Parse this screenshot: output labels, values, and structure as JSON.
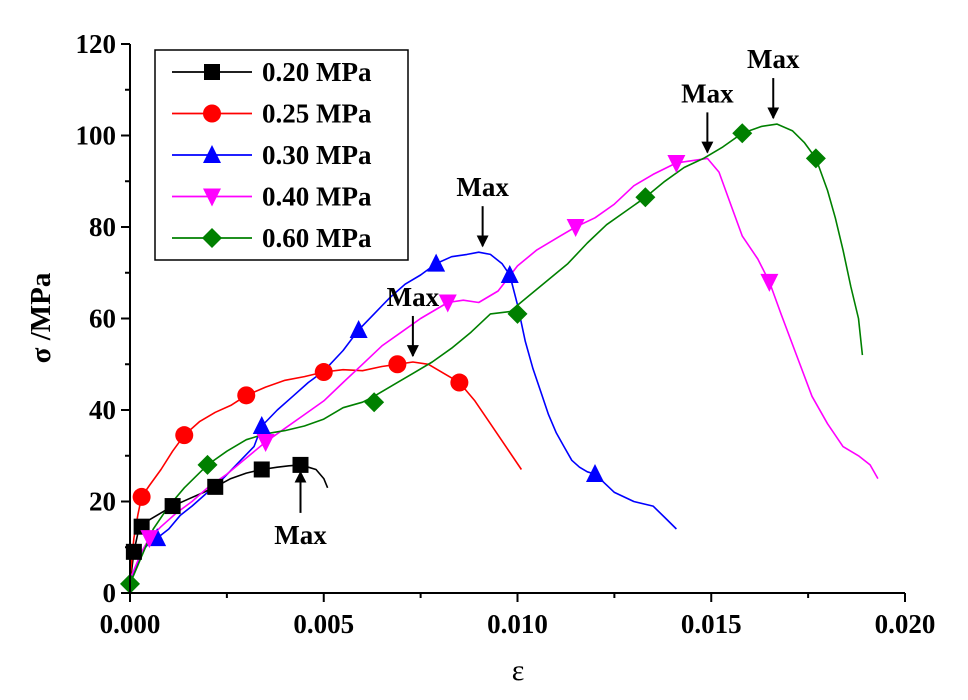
{
  "chart_data": {
    "type": "line",
    "title": "",
    "xlabel": "ε",
    "ylabel": "σ /MPa",
    "xlim": [
      0,
      0.02
    ],
    "ylim": [
      0,
      120
    ],
    "xticks": [
      0,
      0.005,
      0.01,
      0.015,
      0.02
    ],
    "xtick_labels": [
      "0.000",
      "0.005",
      "0.010",
      "0.015",
      "0.020"
    ],
    "yticks": [
      0,
      20,
      40,
      60,
      80,
      100,
      120
    ],
    "ytick_labels": [
      "0",
      "20",
      "40",
      "60",
      "80",
      "100",
      "120"
    ],
    "grid": false,
    "legend_position": "top-left",
    "series": [
      {
        "name": "0.20 MPa",
        "color": "#000000",
        "marker": "square",
        "x": [
          0,
          0.0001,
          0.0002,
          0.0003,
          0.0005,
          0.0008,
          0.0011,
          0.0015,
          0.0019,
          0.0022,
          0.0026,
          0.003,
          0.0034,
          0.0038,
          0.0041,
          0.0044,
          0.0046,
          0.0048,
          0.005,
          0.0051
        ],
        "y": [
          2,
          9,
          13,
          14.5,
          16,
          17.5,
          19,
          20.5,
          22,
          23.2,
          25,
          26.2,
          27,
          27.5,
          27.8,
          28,
          27.5,
          27,
          25,
          23
        ],
        "markers_x": [
          0.0001,
          0.0003,
          0.0011,
          0.0022,
          0.0034,
          0.0044
        ],
        "markers_y": [
          9,
          14.5,
          19,
          23.2,
          27,
          28
        ]
      },
      {
        "name": "0.25 MPa",
        "color": "#ff0000",
        "marker": "circle",
        "x": [
          0,
          0.0001,
          0.0002,
          0.0003,
          0.0005,
          0.0008,
          0.0011,
          0.0014,
          0.0018,
          0.0022,
          0.0026,
          0.003,
          0.0035,
          0.004,
          0.0045,
          0.005,
          0.0055,
          0.006,
          0.0065,
          0.0069,
          0.0073,
          0.0077,
          0.0081,
          0.0085,
          0.0089,
          0.0093,
          0.0097,
          0.0101
        ],
        "y": [
          3,
          12,
          17,
          21,
          23.5,
          27,
          31,
          34.5,
          37.5,
          39.5,
          41,
          43.2,
          45,
          46.5,
          47.3,
          48.3,
          48.8,
          48.6,
          49.5,
          50,
          50.5,
          50,
          48,
          46,
          42,
          37,
          32,
          27
        ],
        "markers_x": [
          0.0003,
          0.0014,
          0.003,
          0.005,
          0.0069,
          0.0085
        ],
        "markers_y": [
          21,
          34.5,
          43.2,
          48.3,
          50,
          46
        ]
      },
      {
        "name": "0.30 MPa",
        "color": "#0000ff",
        "marker": "triangle-up",
        "x": [
          0,
          0.0003,
          0.0005,
          0.0007,
          0.001,
          0.0013,
          0.0016,
          0.002,
          0.0024,
          0.0028,
          0.0032,
          0.0034,
          0.0038,
          0.0042,
          0.0046,
          0.005,
          0.0055,
          0.0059,
          0.0063,
          0.0067,
          0.0071,
          0.0075,
          0.0079,
          0.0083,
          0.0087,
          0.009,
          0.0093,
          0.0096,
          0.0098,
          0.01,
          0.0102,
          0.0104,
          0.0106,
          0.0108,
          0.011,
          0.0112,
          0.0114,
          0.0116,
          0.0118,
          0.012,
          0.0125,
          0.013,
          0.0135,
          0.0138,
          0.0141
        ],
        "y": [
          2,
          9,
          11,
          12,
          14,
          17,
          19,
          22,
          25,
          28.5,
          32,
          36.5,
          40,
          43,
          46,
          48.5,
          53,
          57.5,
          61,
          64.5,
          67.5,
          69.5,
          72,
          73.5,
          74,
          74.5,
          74,
          72,
          69.5,
          63,
          55,
          49,
          44,
          39,
          35,
          32,
          29,
          27.5,
          26.5,
          26,
          22,
          20,
          19,
          16.5,
          14
        ],
        "markers_x": [
          0.0007,
          0.0034,
          0.0059,
          0.0079,
          0.0098,
          0.012
        ],
        "markers_y": [
          12,
          36.5,
          57.5,
          72,
          69.5,
          26
        ]
      },
      {
        "name": "0.40 MPa",
        "color": "#ff00ff",
        "marker": "triangle-down",
        "x": [
          0,
          0.0003,
          0.0005,
          0.0008,
          0.0012,
          0.0016,
          0.002,
          0.0025,
          0.003,
          0.0035,
          0.004,
          0.0045,
          0.005,
          0.0055,
          0.006,
          0.0065,
          0.007,
          0.0075,
          0.0082,
          0.0086,
          0.009,
          0.0095,
          0.01,
          0.0105,
          0.0111,
          0.0115,
          0.012,
          0.0125,
          0.013,
          0.0135,
          0.0141,
          0.0145,
          0.0149,
          0.0152,
          0.0155,
          0.0158,
          0.0162,
          0.0165,
          0.0168,
          0.0172,
          0.0176,
          0.018,
          0.0184,
          0.0188,
          0.0191,
          0.0193
        ],
        "y": [
          3,
          9,
          12,
          14.5,
          17.5,
          20,
          23,
          26,
          29.5,
          33,
          36,
          39,
          42,
          46,
          50,
          54,
          57,
          60,
          63.5,
          64,
          63.5,
          66,
          71.5,
          75,
          78,
          80,
          82,
          85,
          89,
          91.5,
          94,
          94.5,
          95,
          92,
          85,
          78,
          73,
          68,
          61,
          52,
          43,
          37,
          32,
          30,
          28,
          25
        ],
        "markers_x": [
          0.0005,
          0.0035,
          0.0082,
          0.0115,
          0.0141,
          0.0165
        ],
        "markers_y": [
          12,
          33,
          63.5,
          80,
          94,
          68
        ]
      },
      {
        "name": "0.60 MPa",
        "color": "#008000",
        "marker": "diamond",
        "x": [
          0,
          0.0003,
          0.0006,
          0.001,
          0.0014,
          0.002,
          0.0025,
          0.003,
          0.0035,
          0.004,
          0.0045,
          0.005,
          0.0055,
          0.006,
          0.0063,
          0.0068,
          0.0073,
          0.0078,
          0.0083,
          0.0088,
          0.0093,
          0.0098,
          0.0103,
          0.0108,
          0.0113,
          0.0118,
          0.0123,
          0.0128,
          0.0133,
          0.0138,
          0.0143,
          0.0148,
          0.0153,
          0.0158,
          0.0163,
          0.0167,
          0.0171,
          0.0174,
          0.0177,
          0.018,
          0.0182,
          0.0184,
          0.0186,
          0.0188,
          0.0189
        ],
        "y": [
          2,
          8,
          14,
          19,
          23,
          28,
          31,
          33.5,
          34.8,
          35.5,
          36.5,
          38,
          40.5,
          41.7,
          43,
          45.5,
          48,
          50.5,
          53.5,
          57,
          61,
          61.5,
          65,
          68.5,
          72,
          76.5,
          80.5,
          83.5,
          86.5,
          90,
          93,
          95,
          97.5,
          100.5,
          102,
          102.5,
          101,
          98.5,
          95,
          88,
          82,
          75,
          67,
          60,
          52
        ],
        "markers_x": [
          0,
          0.002,
          0.0063,
          0.01,
          0.0133,
          0.0158,
          0.0177
        ],
        "markers_y": [
          2,
          28,
          41.7,
          61,
          86.5,
          100.5,
          95
        ]
      }
    ],
    "annotations": [
      {
        "text": "Max",
        "x": 0.0044,
        "y": 28,
        "direction": "up"
      },
      {
        "text": "Max",
        "x": 0.0073,
        "y": 50.5,
        "direction": "down"
      },
      {
        "text": "Max",
        "x": 0.0091,
        "y": 74.5,
        "direction": "down"
      },
      {
        "text": "Max",
        "x": 0.0149,
        "y": 95,
        "direction": "down"
      },
      {
        "text": "Max",
        "x": 0.0166,
        "y": 102.5,
        "direction": "down"
      }
    ]
  }
}
